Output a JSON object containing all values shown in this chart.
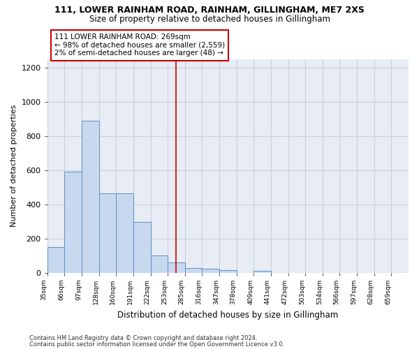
{
  "title1": "111, LOWER RAINHAM ROAD, RAINHAM, GILLINGHAM, ME7 2XS",
  "title2": "Size of property relative to detached houses in Gillingham",
  "xlabel": "Distribution of detached houses by size in Gillingham",
  "ylabel": "Number of detached properties",
  "bin_labels": [
    "35sqm",
    "66sqm",
    "97sqm",
    "128sqm",
    "160sqm",
    "191sqm",
    "222sqm",
    "253sqm",
    "285sqm",
    "316sqm",
    "347sqm",
    "378sqm",
    "409sqm",
    "441sqm",
    "472sqm",
    "503sqm",
    "534sqm",
    "566sqm",
    "597sqm",
    "628sqm",
    "659sqm"
  ],
  "bar_values": [
    150,
    590,
    890,
    465,
    465,
    295,
    100,
    60,
    28,
    22,
    15,
    0,
    10,
    0,
    0,
    0,
    0,
    0,
    0,
    0,
    0
  ],
  "bar_color": "#c8d8ee",
  "bar_edge_color": "#5b8fc8",
  "vline_color": "#cc0000",
  "annotation_text": "111 LOWER RAINHAM ROAD: 269sqm\n← 98% of detached houses are smaller (2,559)\n2% of semi-detached houses are larger (48) →",
  "annotation_box_color": "#ffffff",
  "annotation_edge_color": "#cc0000",
  "ylim": [
    0,
    1250
  ],
  "yticks": [
    0,
    200,
    400,
    600,
    800,
    1000,
    1200
  ],
  "grid_color": "#c8d0dc",
  "bg_color": "#e8ecf4",
  "fig_bg_color": "#ffffff",
  "footer1": "Contains HM Land Registry data © Crown copyright and database right 2024.",
  "footer2": "Contains public sector information licensed under the Open Government Licence v3.0."
}
